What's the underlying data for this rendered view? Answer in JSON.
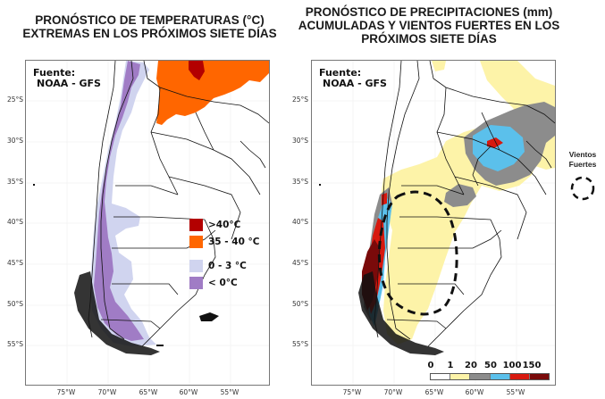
{
  "left_map": {
    "title_line1": "PRONÓSTICO DE TEMPERATURAS (°C)",
    "title_line2": "EXTREMAS EN LOS PRÓXIMOS SIETE DÍAS",
    "source_label": "Fuente:",
    "source_value": "NOAA - GFS",
    "legend": [
      {
        "label": ">40°C",
        "color": "#b30000"
      },
      {
        "label": "35 - 40 °C",
        "color": "#ff6600"
      },
      {
        "label": "0 - 3 °C",
        "color": "#d0d4ef"
      },
      {
        "label": "< 0°C",
        "color": "#a07cc5"
      }
    ]
  },
  "right_map": {
    "title_line1": "PRONÓSTICO DE PRECIPITACIONES (mm)",
    "title_line2": "ACUMULADAS Y VIENTOS FUERTES EN LOS",
    "title_line3": "PRÓXIMOS SIETE DÍAS",
    "source_label": "Fuente:",
    "source_value": "NOAA - GFS",
    "colorbar_ticks": [
      "0",
      "1",
      "20",
      "50",
      "100",
      "150"
    ],
    "colorbar_colors": [
      "#ffffff",
      "#fdf3a8",
      "#8c8c8c",
      "#5bc0eb",
      "#d7190f",
      "#7a0a0a"
    ],
    "wind_legend_line1": "Vientos",
    "wind_legend_line2": "Fuertes"
  },
  "axes": {
    "lat_labels": [
      "25°S",
      "30°S",
      "35°S",
      "40°S",
      "45°S",
      "50°S",
      "55°S"
    ],
    "lon_labels": [
      "75°W",
      "70°W",
      "65°W",
      "60°W",
      "55°W"
    ]
  }
}
